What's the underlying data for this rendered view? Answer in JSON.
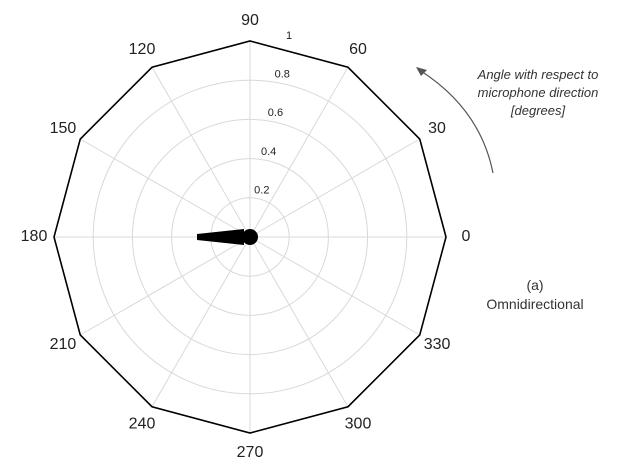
{
  "chart_data": {
    "type": "polar",
    "angular_ticks": [
      "0",
      "30",
      "60",
      "90",
      "120",
      "150",
      "180",
      "210",
      "240",
      "270",
      "300",
      "330"
    ],
    "angular_tick_values": [
      0,
      30,
      60,
      90,
      120,
      150,
      180,
      210,
      240,
      270,
      300,
      330
    ],
    "radial_ticks": [
      "0.2",
      "0.4",
      "0.6",
      "0.8",
      "1"
    ],
    "radial_tick_values": [
      0.2,
      0.4,
      0.6,
      0.8,
      1
    ],
    "rlim": [
      0,
      1
    ],
    "grid": true,
    "pattern": {
      "theta": [
        0,
        30,
        60,
        90,
        120,
        150,
        180,
        210,
        240,
        270,
        300,
        330,
        360
      ],
      "r": [
        1,
        1,
        1,
        1,
        1,
        1,
        1,
        1,
        1,
        1,
        1,
        1,
        1
      ]
    },
    "annotation": "Angle with respect to microphone direction [degrees]",
    "caption_letter": "(a)",
    "caption_text": "Omnidirectional"
  },
  "colors": {
    "grid": "#d9d9d9",
    "outline": "#000000",
    "microphone": "#000000",
    "arrow": "#555555"
  },
  "icons": {
    "microphone": "microphone-icon"
  }
}
